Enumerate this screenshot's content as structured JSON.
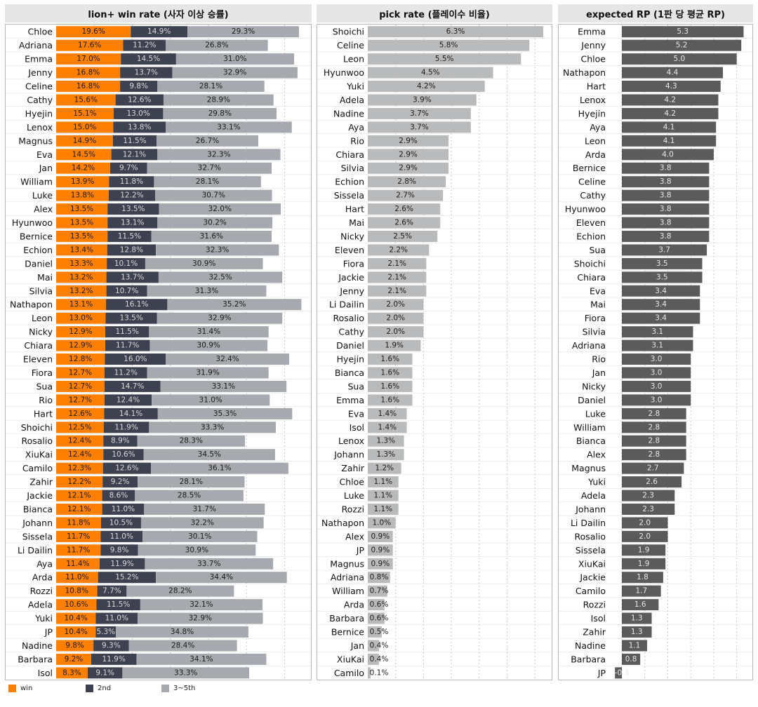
{
  "colors": {
    "win": "#ff8000",
    "second": "#3d4150",
    "third_fifth": "#a6a9ad",
    "pick": "#b9babb",
    "rp": "#5b5b5b",
    "grid": "#c8c8c8"
  },
  "legend": {
    "win": "win",
    "second": "2nd",
    "third_fifth": "3~5th"
  },
  "chart_data": [
    {
      "type": "bar",
      "stacked": true,
      "orientation": "horizontal",
      "title": "lion+ win rate (사자 이상 승률)",
      "categories": [
        "Chloe",
        "Adriana",
        "Emma",
        "Jenny",
        "Celine",
        "Cathy",
        "Hyejin",
        "Lenox",
        "Magnus",
        "Eva",
        "Jan",
        "William",
        "Luke",
        "Alex",
        "Hyunwoo",
        "Bernice",
        "Echion",
        "Daniel",
        "Mai",
        "Silvia",
        "Nathapon",
        "Leon",
        "Nicky",
        "Chiara",
        "Eleven",
        "Fiora",
        "Sua",
        "Rio",
        "Hart",
        "Shoichi",
        "Rosalio",
        "XiuKai",
        "Camilo",
        "Zahir",
        "Jackie",
        "Bianca",
        "Johann",
        "Sissela",
        "Li Dailin",
        "Aya",
        "Arda",
        "Rozzi",
        "Adela",
        "Yuki",
        "JP",
        "Nadine",
        "Barbara",
        "Isol"
      ],
      "series": [
        {
          "name": "win",
          "unit": "%",
          "values": [
            19.6,
            17.6,
            17.0,
            16.8,
            16.8,
            15.6,
            15.1,
            15.0,
            14.9,
            14.5,
            14.2,
            13.9,
            13.8,
            13.5,
            13.5,
            13.5,
            13.4,
            13.3,
            13.2,
            13.2,
            13.1,
            13.0,
            12.9,
            12.9,
            12.8,
            12.7,
            12.7,
            12.7,
            12.6,
            12.5,
            12.4,
            12.4,
            12.3,
            12.2,
            12.1,
            12.1,
            11.8,
            11.7,
            11.7,
            11.4,
            11.0,
            10.8,
            10.6,
            10.4,
            10.4,
            9.8,
            9.2,
            8.3
          ]
        },
        {
          "name": "2nd",
          "unit": "%",
          "values": [
            14.9,
            11.2,
            14.5,
            13.7,
            9.8,
            12.6,
            13.0,
            13.8,
            11.5,
            12.1,
            9.7,
            11.8,
            12.2,
            13.5,
            13.1,
            11.5,
            12.8,
            10.1,
            13.7,
            10.7,
            16.1,
            13.5,
            11.5,
            11.7,
            16.0,
            11.2,
            14.7,
            12.4,
            14.1,
            11.9,
            8.9,
            10.6,
            12.6,
            9.2,
            8.6,
            11.0,
            10.5,
            11.0,
            9.8,
            11.9,
            15.2,
            7.7,
            11.5,
            11.0,
            5.3,
            9.3,
            11.9,
            9.1
          ]
        },
        {
          "name": "3~5th",
          "unit": "%",
          "values": [
            29.3,
            26.8,
            31.0,
            32.9,
            28.1,
            28.9,
            29.8,
            33.1,
            26.7,
            32.3,
            32.7,
            28.1,
            30.7,
            32.0,
            30.2,
            31.6,
            32.3,
            30.9,
            32.5,
            31.3,
            35.2,
            32.9,
            31.4,
            30.9,
            32.4,
            31.9,
            33.1,
            31.0,
            35.3,
            33.3,
            28.3,
            34.5,
            36.1,
            28.1,
            28.5,
            31.7,
            32.2,
            30.1,
            30.9,
            33.7,
            34.4,
            28.2,
            32.1,
            32.9,
            34.8,
            28.4,
            34.1,
            33.3
          ]
        }
      ],
      "xlim": [
        0,
        66
      ]
    },
    {
      "type": "bar",
      "orientation": "horizontal",
      "title": "pick rate (플레이수 비율)",
      "categories": [
        "Shoichi",
        "Celine",
        "Leon",
        "Hyunwoo",
        "Yuki",
        "Adela",
        "Nadine",
        "Aya",
        "Rio",
        "Chiara",
        "Silvia",
        "Echion",
        "Sissela",
        "Hart",
        "Mai",
        "Nicky",
        "Eleven",
        "Fiora",
        "Jackie",
        "Jenny",
        "Li Dailin",
        "Rosalio",
        "Cathy",
        "Daniel",
        "Hyejin",
        "Bianca",
        "Sua",
        "Emma",
        "Eva",
        "Isol",
        "Lenox",
        "Johann",
        "Zahir",
        "Chloe",
        "Luke",
        "Rozzi",
        "Nathapon",
        "Alex",
        "JP",
        "Magnus",
        "Adriana",
        "William",
        "Arda",
        "Barbara",
        "Bernice",
        "Jan",
        "XiuKai",
        "Camilo"
      ],
      "series": [
        {
          "name": "pick rate",
          "unit": "%",
          "values": [
            6.3,
            5.8,
            5.5,
            4.5,
            4.2,
            3.9,
            3.7,
            3.7,
            2.9,
            2.9,
            2.9,
            2.8,
            2.7,
            2.6,
            2.6,
            2.5,
            2.2,
            2.1,
            2.1,
            2.1,
            2.0,
            2.0,
            2.0,
            1.9,
            1.6,
            1.6,
            1.6,
            1.6,
            1.4,
            1.4,
            1.3,
            1.3,
            1.2,
            1.1,
            1.1,
            1.1,
            1.0,
            0.9,
            0.9,
            0.9,
            0.8,
            0.7,
            0.6,
            0.6,
            0.5,
            0.4,
            0.4,
            0.1
          ]
        }
      ],
      "xlim": [
        0,
        6.5
      ]
    },
    {
      "type": "bar",
      "orientation": "horizontal",
      "title": "expected RP (1판 당 평균 RP)",
      "categories": [
        "Emma",
        "Jenny",
        "Chloe",
        "Nathapon",
        "Hart",
        "Lenox",
        "Hyejin",
        "Aya",
        "Leon",
        "Arda",
        "Bernice",
        "Celine",
        "Cathy",
        "Hyunwoo",
        "Eleven",
        "Echion",
        "Sua",
        "Shoichi",
        "Chiara",
        "Eva",
        "Mai",
        "Fiora",
        "Silvia",
        "Adriana",
        "Rio",
        "Jan",
        "Nicky",
        "Daniel",
        "Luke",
        "William",
        "Bianca",
        "Alex",
        "Magnus",
        "Yuki",
        "Adela",
        "Johann",
        "Li Dailin",
        "Rosalio",
        "Sissela",
        "XiuKai",
        "Jackie",
        "Camilo",
        "Rozzi",
        "Isol",
        "Zahir",
        "Nadine",
        "Barbara",
        "JP"
      ],
      "series": [
        {
          "name": "expected RP",
          "values": [
            5.3,
            5.2,
            5.0,
            4.4,
            4.3,
            4.2,
            4.2,
            4.1,
            4.1,
            4.0,
            3.8,
            3.8,
            3.8,
            3.8,
            3.8,
            3.8,
            3.7,
            3.5,
            3.5,
            3.4,
            3.4,
            3.4,
            3.1,
            3.1,
            3.0,
            3.0,
            3.0,
            3.0,
            2.8,
            2.8,
            2.8,
            2.8,
            2.7,
            2.6,
            2.3,
            2.3,
            2.0,
            2.0,
            1.9,
            1.9,
            1.8,
            1.7,
            1.6,
            1.3,
            1.3,
            1.1,
            0.8,
            -0.3
          ]
        }
      ],
      "xlim": [
        -0.5,
        5.5
      ]
    }
  ]
}
